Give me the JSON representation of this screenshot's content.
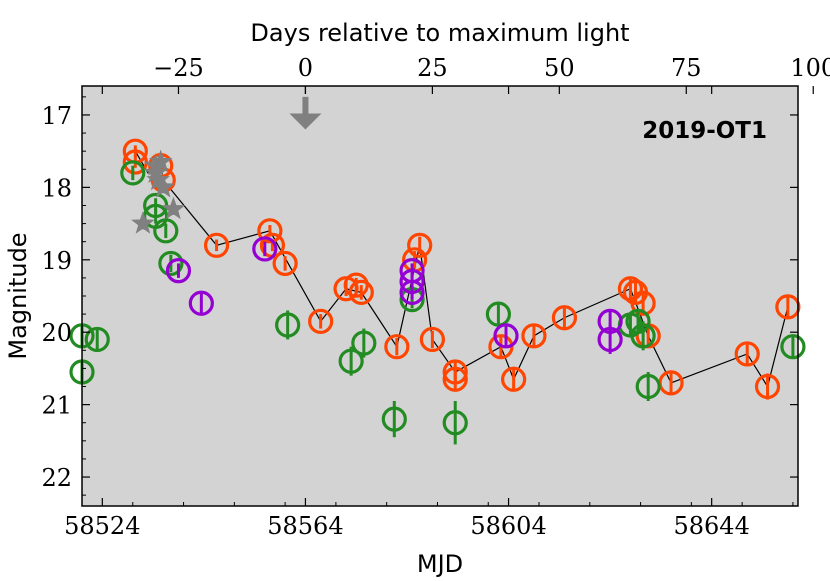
{
  "chart_data": {
    "type": "scatter",
    "title": "",
    "annotation": "2019-OT1",
    "xlabel": "MJD",
    "ylabel": "Magnitude",
    "top_xlabel": "Days relative to maximum light",
    "xlim": [
      58520,
      58661
    ],
    "ylim": [
      22.4,
      16.6
    ],
    "y_inverted": true,
    "top_axis_offset": 58564,
    "xticks": [
      58524,
      58564,
      58604,
      58644
    ],
    "yticks": [
      17,
      18,
      19,
      20,
      21,
      22
    ],
    "top_ticks": [
      -25,
      0,
      25,
      50,
      75,
      100
    ],
    "top_tick_labels": [
      "−25",
      "0",
      "25",
      "50",
      "75",
      "100"
    ],
    "background": "#d3d3d3",
    "colors": {
      "orange": "#ff4500",
      "green": "#228b22",
      "purple": "#9400d3",
      "gray": "#808080",
      "line": "#000000"
    },
    "max_light_arrow": {
      "x": 58564,
      "y_from": 16.75,
      "y_to": 17.2
    },
    "series": [
      {
        "name": "orange",
        "marker": "circle",
        "points": [
          [
            58530.5,
            17.5,
            0.08
          ],
          [
            58530.5,
            17.65,
            0.08
          ],
          [
            58535.5,
            17.7,
            0.08
          ],
          [
            58536,
            17.9,
            0.08
          ],
          [
            58546.5,
            18.8,
            0.08
          ],
          [
            58557,
            18.6,
            0.08
          ],
          [
            58557.5,
            18.8,
            0.08
          ],
          [
            58560,
            19.05,
            0.1
          ],
          [
            58567,
            19.85,
            0.1
          ],
          [
            58572,
            19.4,
            0.1
          ],
          [
            58574,
            19.35,
            0.1
          ],
          [
            58575,
            19.45,
            0.1
          ],
          [
            58582,
            20.2,
            0.12
          ],
          [
            58585.5,
            19.0,
            0.12
          ],
          [
            58586.5,
            18.8,
            0.12
          ],
          [
            58589,
            20.1,
            0.12
          ],
          [
            58593.5,
            20.55,
            0.15
          ],
          [
            58593.5,
            20.65,
            0.15
          ],
          [
            58602.5,
            20.2,
            0.15
          ],
          [
            58605,
            20.65,
            0.15
          ],
          [
            58609,
            20.05,
            0.15
          ],
          [
            58615,
            19.8,
            0.15
          ],
          [
            58628,
            19.4,
            0.15
          ],
          [
            58629,
            19.45,
            0.15
          ],
          [
            58630.5,
            19.6,
            0.15
          ],
          [
            58631.5,
            20.05,
            0.15
          ],
          [
            58636,
            20.7,
            0.15
          ],
          [
            58651,
            20.3,
            0.15
          ],
          [
            58655,
            20.75,
            0.18
          ],
          [
            58659,
            19.65,
            0.15
          ]
        ]
      },
      {
        "name": "green",
        "marker": "circle",
        "points": [
          [
            58520,
            20.05,
            0.15
          ],
          [
            58523,
            20.1,
            0.15
          ],
          [
            58520,
            20.55,
            0.15
          ],
          [
            58530,
            17.8,
            0.1
          ],
          [
            58534.5,
            18.25,
            0.1
          ],
          [
            58534.5,
            18.4,
            0.1
          ],
          [
            58536.5,
            18.6,
            0.1
          ],
          [
            58537.5,
            19.05,
            0.12
          ],
          [
            58560.5,
            19.9,
            0.2
          ],
          [
            58573,
            20.4,
            0.2
          ],
          [
            58575.5,
            20.15,
            0.2
          ],
          [
            58581.5,
            21.2,
            0.25
          ],
          [
            58585,
            19.55,
            0.12
          ],
          [
            58593.5,
            21.25,
            0.3
          ],
          [
            58602,
            19.75,
            0.15
          ],
          [
            58628,
            19.9,
            0.15
          ],
          [
            58629.5,
            19.85,
            0.15
          ],
          [
            58630.5,
            20.05,
            0.2
          ],
          [
            58631.5,
            20.75,
            0.2
          ],
          [
            58660,
            20.2,
            0.15
          ]
        ]
      },
      {
        "name": "purple",
        "marker": "circle",
        "points": [
          [
            58539,
            19.15,
            0.1
          ],
          [
            58543.5,
            19.6,
            0.15
          ],
          [
            58556,
            18.85,
            0.1
          ],
          [
            58585,
            19.15,
            0.1
          ],
          [
            58585,
            19.3,
            0.1
          ],
          [
            58585,
            19.45,
            0.1
          ],
          [
            58603.5,
            20.05,
            0.15
          ],
          [
            58624,
            19.85,
            0.15
          ],
          [
            58624,
            20.1,
            0.2
          ]
        ]
      },
      {
        "name": "gray",
        "marker": "star",
        "points": [
          [
            58534.5,
            17.7,
            0.08
          ],
          [
            58534.5,
            17.8,
            0.08
          ],
          [
            58535,
            17.9,
            0.08
          ],
          [
            58535.5,
            17.65,
            0.08
          ],
          [
            58532,
            18.5,
            0.08
          ],
          [
            58538,
            18.3,
            0.08
          ],
          [
            58536,
            18.0,
            0.08
          ]
        ]
      }
    ],
    "connecting_line": [
      [
        58530.5,
        17.5
      ],
      [
        58533,
        17.8
      ],
      [
        58535.5,
        17.7
      ],
      [
        58536,
        17.9
      ],
      [
        58546.5,
        18.8
      ],
      [
        58557,
        18.6
      ],
      [
        58567,
        19.85
      ],
      [
        58572,
        19.4
      ],
      [
        58575,
        19.45
      ],
      [
        58582,
        20.2
      ],
      [
        58586.5,
        18.8
      ],
      [
        58589,
        20.1
      ],
      [
        58593.5,
        20.55
      ],
      [
        58602.5,
        20.2
      ],
      [
        58605,
        20.65
      ],
      [
        58609,
        20.05
      ],
      [
        58615,
        19.8
      ],
      [
        58628,
        19.4
      ],
      [
        58631.5,
        20.05
      ],
      [
        58636,
        20.7
      ],
      [
        58651,
        20.3
      ],
      [
        58655,
        20.75
      ],
      [
        58659,
        19.65
      ]
    ]
  }
}
